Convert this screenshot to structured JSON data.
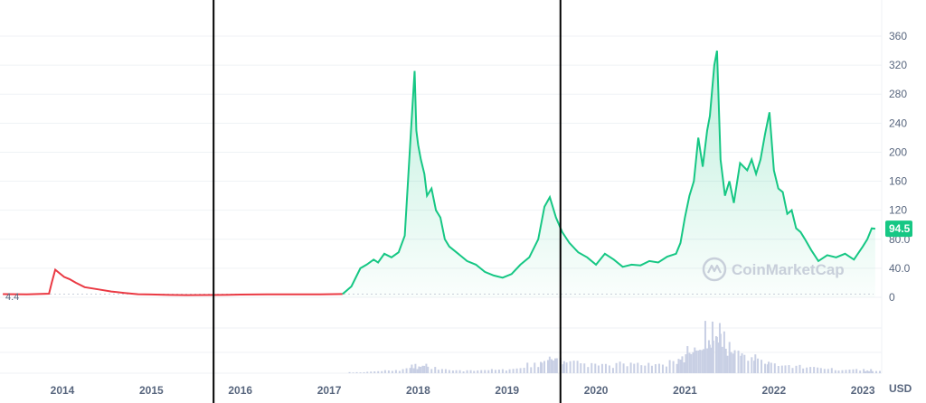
{
  "chart_data": {
    "type": "line",
    "currency": "USD",
    "watermark": "CoinMarketCap",
    "start_label": "4.4",
    "current_label": "94.5",
    "ylim": [
      0,
      380
    ],
    "yticks": [
      0,
      40.0,
      80.0,
      120,
      160,
      200,
      240,
      280,
      320,
      360
    ],
    "ytick_labels": [
      "0",
      "40.0",
      "80.0",
      "120",
      "160",
      "200",
      "240",
      "280",
      "320",
      "360"
    ],
    "xtick_labels": [
      "2014",
      "2015",
      "2016",
      "2017",
      "2018",
      "2019",
      "2020",
      "2021",
      "2022",
      "2023"
    ],
    "xtick_years": [
      2014,
      2015,
      2016,
      2017,
      2018,
      2019,
      2020,
      2021,
      2022,
      2023
    ],
    "vertical_lines": [
      2015.7,
      2019.6
    ],
    "colors": {
      "up": "#16c784",
      "down": "#ea3943",
      "grid": "#eff2f5",
      "volume": "#c8cfe4",
      "axis_text": "#58667e"
    },
    "series": [
      {
        "x": [
          2013.33,
          2013.6,
          2013.85,
          2013.88,
          2013.92,
          2013.97,
          2014.02,
          2014.08,
          2014.15,
          2014.25,
          2014.4,
          2014.55,
          2014.7,
          2014.85,
          2015.0,
          2015.2,
          2015.4,
          2015.6,
          2015.8,
          2016.0,
          2016.3,
          2016.6,
          2016.9,
          2017.15,
          2017.25,
          2017.35,
          2017.42,
          2017.5,
          2017.55,
          2017.62,
          2017.7,
          2017.78,
          2017.85,
          2017.92,
          2017.96,
          2017.98,
          2018.0,
          2018.03,
          2018.07,
          2018.1,
          2018.15,
          2018.2,
          2018.25,
          2018.3,
          2018.35,
          2018.45,
          2018.55,
          2018.65,
          2018.75,
          2018.85,
          2018.95,
          2019.05,
          2019.15,
          2019.25,
          2019.35,
          2019.42,
          2019.48,
          2019.55,
          2019.62,
          2019.7,
          2019.8,
          2019.9,
          2020.0,
          2020.1,
          2020.2,
          2020.3,
          2020.4,
          2020.5,
          2020.6,
          2020.7,
          2020.8,
          2020.9,
          2020.95,
          2021.0,
          2021.05,
          2021.1,
          2021.15,
          2021.2,
          2021.25,
          2021.28,
          2021.33,
          2021.36,
          2021.4,
          2021.45,
          2021.5,
          2021.55,
          2021.62,
          2021.7,
          2021.75,
          2021.8,
          2021.85,
          2021.9,
          2021.95,
          2022.0,
          2022.05,
          2022.1,
          2022.15,
          2022.2,
          2022.25,
          2022.3,
          2022.35,
          2022.42,
          2022.5,
          2022.6,
          2022.7,
          2022.8,
          2022.9,
          2023.0,
          2023.05,
          2023.1,
          2023.14
        ],
        "values": [
          4.4,
          4.0,
          5.0,
          20,
          38,
          33,
          28,
          25,
          20,
          14,
          11,
          8,
          6,
          4.2,
          3.8,
          3.2,
          3.0,
          3.1,
          3.3,
          3.7,
          4.0,
          4.0,
          4.1,
          4.5,
          15,
          40,
          45,
          52,
          48,
          60,
          55,
          62,
          85,
          230,
          312,
          230,
          210,
          190,
          170,
          140,
          150,
          120,
          110,
          80,
          70,
          60,
          50,
          45,
          35,
          30,
          27,
          32,
          45,
          55,
          80,
          125,
          138,
          110,
          90,
          75,
          62,
          55,
          45,
          60,
          52,
          42,
          45,
          44,
          50,
          48,
          56,
          60,
          75,
          110,
          140,
          160,
          220,
          180,
          230,
          250,
          320,
          340,
          190,
          140,
          160,
          130,
          185,
          175,
          190,
          170,
          190,
          225,
          255,
          175,
          150,
          145,
          115,
          120,
          95,
          90,
          80,
          65,
          50,
          58,
          55,
          60,
          52,
          70,
          80,
          95,
          94.5
        ]
      }
    ],
    "volume": {
      "x": [
        2017.3,
        2017.5,
        2017.7,
        2017.9,
        2018.0,
        2018.1,
        2018.3,
        2018.5,
        2018.7,
        2018.9,
        2019.1,
        2019.3,
        2019.45,
        2019.55,
        2019.7,
        2019.9,
        2020.1,
        2020.3,
        2020.5,
        2020.7,
        2020.9,
        2021.0,
        2021.1,
        2021.2,
        2021.3,
        2021.35,
        2021.45,
        2021.55,
        2021.7,
        2021.85,
        2022.0,
        2022.2,
        2022.4,
        2022.6,
        2022.8,
        2023.0,
        2023.1
      ],
      "values": [
        1,
        2,
        3,
        5,
        9,
        7,
        4,
        3,
        3,
        4,
        6,
        10,
        18,
        16,
        12,
        10,
        9,
        11,
        10,
        9,
        13,
        20,
        26,
        38,
        50,
        42,
        30,
        22,
        18,
        14,
        10,
        8,
        6,
        5,
        4,
        4,
        3
      ]
    }
  }
}
